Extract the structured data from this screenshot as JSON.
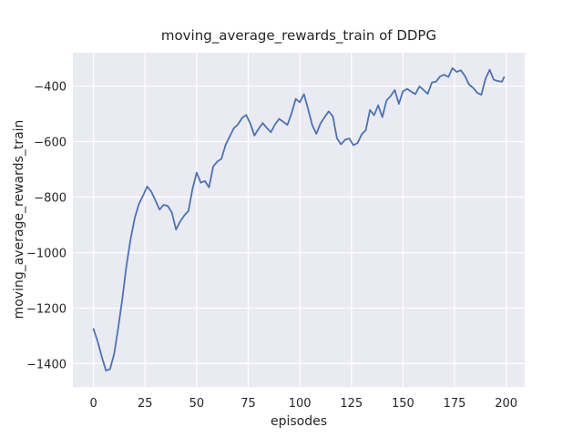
{
  "chart_data": {
    "type": "line",
    "title": "moving_average_rewards_train of DDPG",
    "xlabel": "episodes",
    "ylabel": "moving_average_rewards_train",
    "x_ticks": [
      0,
      25,
      50,
      75,
      100,
      125,
      150,
      175,
      200
    ],
    "y_ticks": [
      -400,
      -600,
      -800,
      -1000,
      -1200,
      -1400
    ],
    "xlim": [
      -10,
      209
    ],
    "ylim": [
      -1484,
      -280
    ],
    "grid": true,
    "legend_position": "none",
    "style": {
      "line_color": "#4C72B0",
      "axes_background": "#EAEAF2",
      "grid_color": "#FFFFFF",
      "text_color": "#262626",
      "figure_background": "#FFFFFF"
    },
    "series": [
      {
        "name": "moving_average_rewards_train",
        "x": [
          0,
          2,
          4,
          6,
          8,
          10,
          12,
          14,
          16,
          18,
          20,
          22,
          24,
          26,
          28,
          30,
          32,
          34,
          36,
          38,
          40,
          42,
          44,
          46,
          48,
          50,
          52,
          54,
          56,
          58,
          60,
          62,
          64,
          66,
          68,
          70,
          72,
          74,
          76,
          78,
          80,
          82,
          84,
          86,
          88,
          90,
          92,
          94,
          96,
          98,
          100,
          102,
          104,
          106,
          108,
          110,
          112,
          114,
          116,
          118,
          120,
          122,
          124,
          126,
          128,
          130,
          132,
          134,
          136,
          138,
          140,
          142,
          144,
          146,
          148,
          150,
          152,
          154,
          156,
          158,
          160,
          162,
          164,
          166,
          168,
          170,
          172,
          174,
          176,
          178,
          180,
          182,
          184,
          186,
          188,
          190,
          192,
          194,
          196,
          198,
          199
        ],
        "y": [
          -1275,
          -1320,
          -1375,
          -1425,
          -1420,
          -1365,
          -1270,
          -1165,
          -1045,
          -950,
          -875,
          -825,
          -795,
          -762,
          -780,
          -812,
          -845,
          -828,
          -832,
          -856,
          -917,
          -888,
          -866,
          -850,
          -770,
          -712,
          -748,
          -742,
          -765,
          -690,
          -672,
          -662,
          -612,
          -582,
          -552,
          -538,
          -515,
          -504,
          -535,
          -578,
          -554,
          -533,
          -551,
          -566,
          -538,
          -518,
          -529,
          -540,
          -498,
          -446,
          -458,
          -429,
          -482,
          -540,
          -572,
          -535,
          -512,
          -491,
          -509,
          -588,
          -610,
          -593,
          -589,
          -613,
          -605,
          -574,
          -558,
          -486,
          -505,
          -469,
          -512,
          -452,
          -436,
          -414,
          -464,
          -419,
          -410,
          -420,
          -429,
          -401,
          -414,
          -428,
          -387,
          -384,
          -365,
          -359,
          -367,
          -335,
          -349,
          -343,
          -363,
          -394,
          -406,
          -424,
          -431,
          -374,
          -341,
          -377,
          -382,
          -384,
          -368
        ]
      }
    ]
  }
}
